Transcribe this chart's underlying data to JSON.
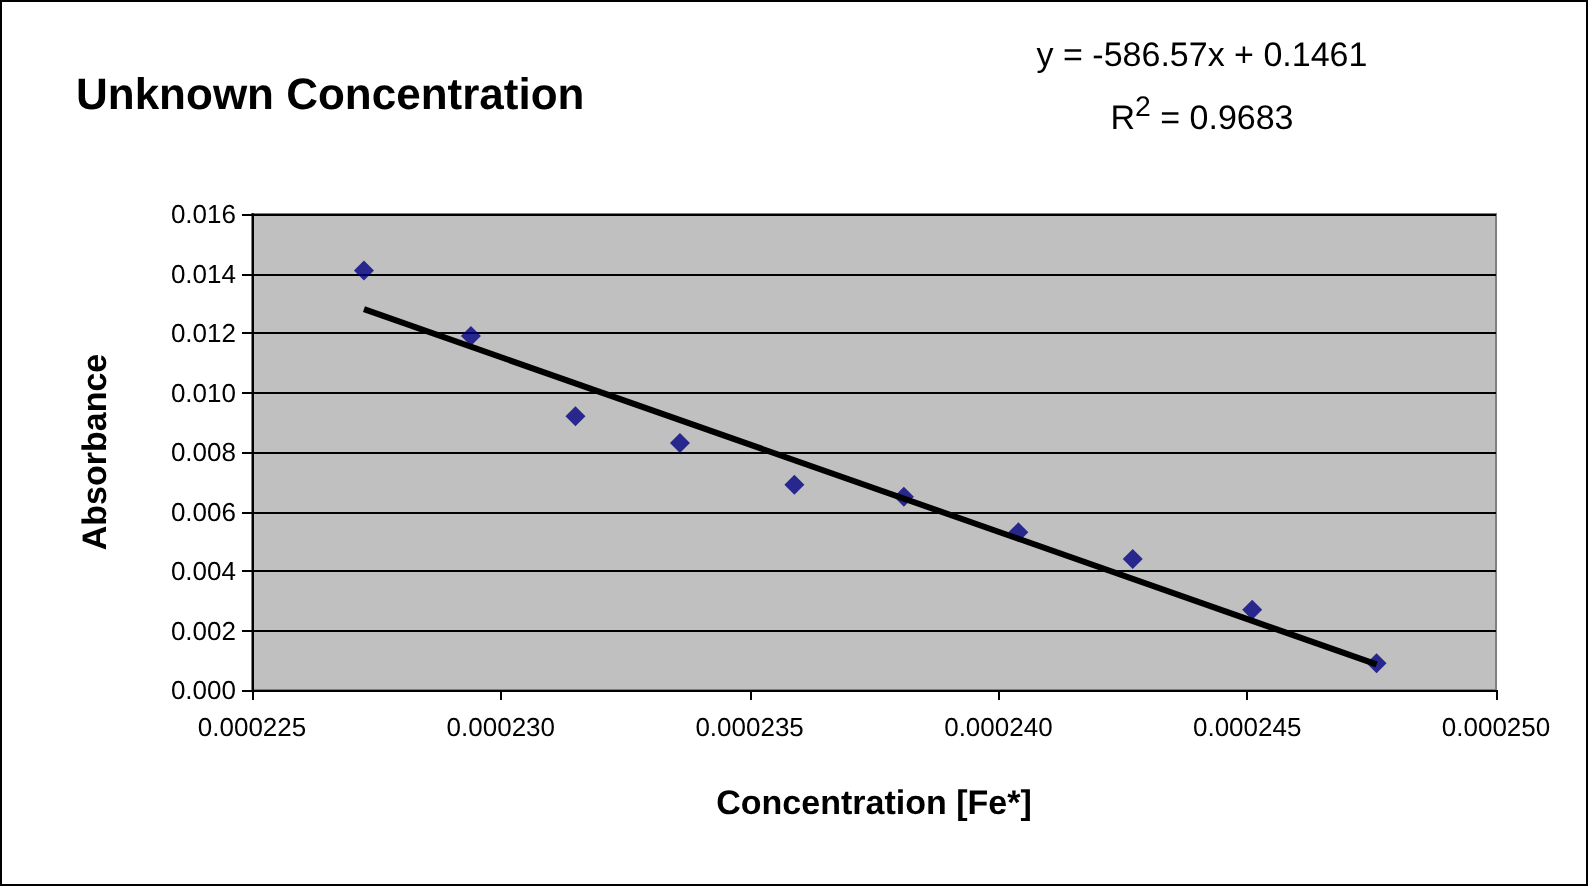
{
  "chart_data": {
    "type": "scatter",
    "title": "Unknown Concentration",
    "xlabel": "Concentration [Fe*]",
    "ylabel": "Absorbance",
    "annotations": [
      "y = -586.57x + 0.1461",
      "R$^{2}$ = 0.9683"
    ],
    "series": [
      {
        "color": "#000080",
        "marker": "diamond",
        "x": [
          0.00022725,
          0.0002294,
          0.0002315,
          0.0002336,
          0.0002359,
          0.0002381,
          0.0002404,
          0.0002427,
          0.0002451,
          0.0002476
        ],
        "values": [
          0.0141,
          0.0119,
          0.0092,
          0.0083,
          0.0069,
          0.0065,
          0.0053,
          0.0044,
          0.0027,
          0.0009
        ]
      },
      {
        "type": "line",
        "color": "#000000",
        "marker": "none",
        "line_style": "solid",
        "x": [
          0.00022725,
          0.0002476
        ],
        "values": [
          0.0128,
          0.00086
        ]
      }
    ],
    "xlim": [
      0.000225,
      0.00025
    ],
    "xticks": [
      {
        "value": 0.000225,
        "label": "0.000225"
      },
      {
        "value": 0.00023,
        "label": "0.000230"
      },
      {
        "value": 0.000235,
        "label": "0.000235"
      },
      {
        "value": 0.00024,
        "label": "0.000240"
      },
      {
        "value": 0.000245,
        "label": "0.000245"
      },
      {
        "value": 0.00025,
        "label": "0.000250"
      }
    ],
    "ylim": [
      0,
      0.016
    ],
    "yticks": [
      {
        "value": 0,
        "label": "0.000"
      },
      {
        "value": 0.002,
        "label": "0.002"
      },
      {
        "value": 0.004,
        "label": "0.004"
      },
      {
        "value": 0.006,
        "label": "0.006"
      },
      {
        "value": 0.008,
        "label": "0.008"
      },
      {
        "value": 0.01,
        "label": "0.010"
      },
      {
        "value": 0.012,
        "label": "0.012"
      },
      {
        "value": 0.014,
        "label": "0.014"
      },
      {
        "value": 0.016,
        "label": "0.016"
      }
    ],
    "grid": "y"
  }
}
